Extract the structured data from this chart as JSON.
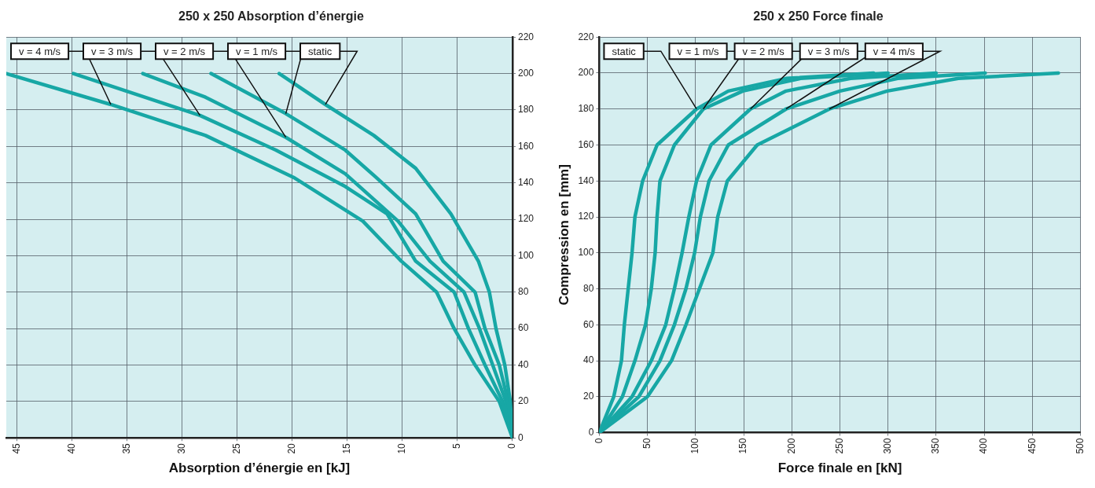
{
  "chart_data": [
    {
      "type": "line",
      "title": "250 x 250 Absorption d’énergie",
      "xlabel": "Absorption d’énergie en [kJ]",
      "series": [
        {
          "name": "static",
          "color": "#17a7a5",
          "axis": "y2",
          "x": [
            0,
            0.2,
            0.7,
            1.5,
            2.1,
            3.1,
            5.6,
            8.8,
            12.6,
            17,
            21.2
          ],
          "values": [
            0,
            20,
            40,
            60,
            80,
            97,
            123,
            148,
            166,
            183,
            200
          ]
        },
        {
          "name": "v = 1 m/s",
          "color": "#17a7a5",
          "axis": "y2",
          "x": [
            0,
            0.4,
            1.2,
            2.5,
            3.4,
            6.3,
            8.8,
            12.4,
            15.2,
            20.6,
            27.4
          ],
          "values": [
            0,
            20,
            40,
            60,
            80,
            97,
            123,
            143,
            158,
            178,
            200
          ]
        },
        {
          "name": "v = 2 m/s",
          "color": "#17a7a5",
          "axis": "y2",
          "x": [
            0,
            0.6,
            1.8,
            3.0,
            4.4,
            7.5,
            10.4,
            15.2,
            20.6,
            27.9,
            33.6
          ],
          "values": [
            0,
            20,
            40,
            60,
            80,
            97,
            119,
            145,
            165,
            187,
            200
          ]
        },
        {
          "name": "v = 3 m/s",
          "color": "#17a7a5",
          "axis": "y2",
          "x": [
            0,
            0.9,
            2.5,
            4.0,
            5.3,
            8.8,
            11.4,
            15.2,
            21.5,
            28.4,
            39.9
          ],
          "values": [
            0,
            20,
            40,
            60,
            80,
            97,
            123,
            138,
            158,
            177,
            200
          ]
        },
        {
          "name": "v = 4 m/s",
          "color": "#17a7a5",
          "axis": "y2",
          "x": [
            0,
            1.2,
            3.4,
            5.3,
            6.9,
            10.1,
            13.6,
            19.9,
            27.9,
            36.5,
            46
          ],
          "values": [
            0,
            20,
            40,
            60,
            80,
            97,
            119,
            143,
            166,
            183,
            200
          ]
        }
      ],
      "xlim": [
        46,
        0
      ],
      "xticks": [
        45,
        40,
        35,
        30,
        25,
        20,
        15,
        10,
        5,
        0
      ],
      "y2lim": [
        0,
        220
      ],
      "y2ticks": [
        0,
        20,
        40,
        60,
        80,
        100,
        120,
        140,
        160,
        180,
        200,
        220
      ],
      "grid": true,
      "marker": "none",
      "line_style": "solid"
    },
    {
      "type": "line",
      "title": "250 x 250 Force finale",
      "xlabel": "Force finale en [kN]",
      "ylabel": "Compression en [mm]",
      "series": [
        {
          "name": "static",
          "color": "#17a7a5",
          "x": [
            0,
            15,
            23,
            26,
            30,
            34,
            37,
            45,
            60,
            101,
            134,
            194,
            285
          ],
          "values": [
            0,
            20,
            40,
            60,
            80,
            100,
            120,
            140,
            160,
            180,
            190,
            197,
            200
          ]
        },
        {
          "name": "v = 1 m/s",
          "color": "#17a7a5",
          "x": [
            0,
            24,
            37,
            48,
            54,
            58,
            60,
            63,
            78,
            108,
            149,
            209,
            300
          ],
          "values": [
            0,
            20,
            40,
            60,
            80,
            100,
            120,
            140,
            160,
            180,
            190,
            197,
            200
          ]
        },
        {
          "name": "v = 2 m/s",
          "color": "#17a7a5",
          "x": [
            0,
            34,
            54,
            69,
            78,
            86,
            93,
            101,
            116,
            157,
            194,
            261,
            350
          ],
          "values": [
            0,
            20,
            40,
            60,
            80,
            100,
            120,
            140,
            160,
            180,
            190,
            197,
            200
          ]
        },
        {
          "name": "v = 3 m/s",
          "color": "#17a7a5",
          "x": [
            0,
            41,
            63,
            78,
            90,
            99,
            105,
            114,
            134,
            194,
            250,
            310,
            401
          ],
          "values": [
            0,
            20,
            40,
            60,
            80,
            100,
            120,
            140,
            160,
            180,
            190,
            197,
            200
          ]
        },
        {
          "name": "v = 4 m/s",
          "color": "#17a7a5",
          "x": [
            0,
            50,
            75,
            90,
            104,
            118,
            123,
            133,
            164,
            239,
            299,
            373,
            477
          ],
          "values": [
            0,
            20,
            40,
            60,
            80,
            100,
            120,
            140,
            160,
            180,
            190,
            197,
            200
          ]
        }
      ],
      "xlim": [
        0,
        500
      ],
      "xticks": [
        0,
        50,
        100,
        150,
        200,
        250,
        300,
        350,
        400,
        450,
        500
      ],
      "ylim": [
        0,
        220
      ],
      "yticks": [
        0,
        20,
        40,
        60,
        80,
        100,
        120,
        140,
        160,
        180,
        200,
        220
      ],
      "grid": true,
      "marker": "none",
      "line_style": "solid"
    }
  ]
}
